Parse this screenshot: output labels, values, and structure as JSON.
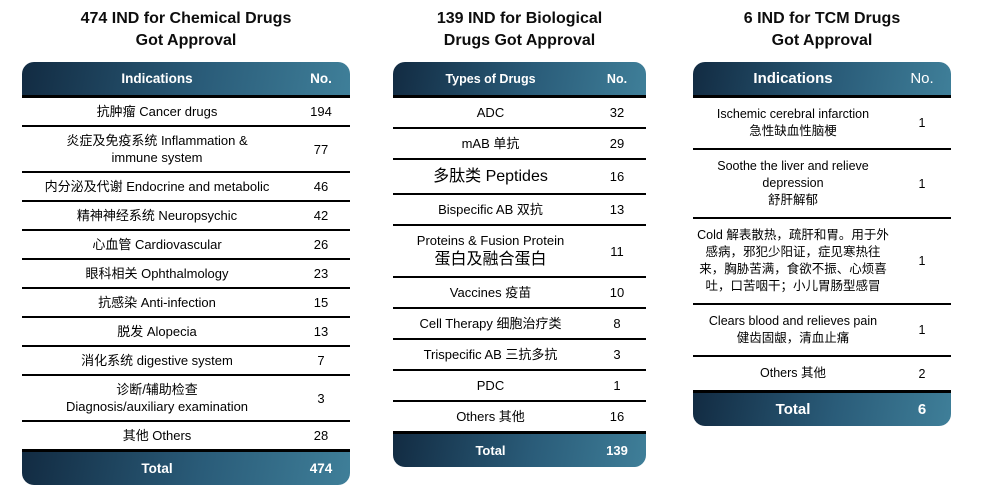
{
  "colors": {
    "header_gradient_start": "#122b42",
    "header_gradient_end": "#3f7f99",
    "header_text": "#ffffff",
    "row_separator": "#000000",
    "body_text": "#000000",
    "background": "#ffffff"
  },
  "chart_data": [
    {
      "type": "table",
      "title": "474 IND for Chemical Drugs\nGot Approval",
      "columns": [
        "Indications",
        "No."
      ],
      "rows": [
        {
          "lines": [
            "抗肿瘤 Cancer drugs"
          ],
          "value": 194
        },
        {
          "lines": [
            "炎症及免疫系统 Inflammation &",
            "immune system"
          ],
          "value": 77
        },
        {
          "lines": [
            "内分泌及代谢 Endocrine and metabolic"
          ],
          "value": 46
        },
        {
          "lines": [
            "精神神经系统 Neuropsychic"
          ],
          "value": 42
        },
        {
          "lines": [
            "心血管 Cardiovascular"
          ],
          "value": 26
        },
        {
          "lines": [
            "眼科相关 Ophthalmology"
          ],
          "value": 23
        },
        {
          "lines": [
            "抗感染 Anti-infection"
          ],
          "value": 15
        },
        {
          "lines": [
            "脱发 Alopecia"
          ],
          "value": 13
        },
        {
          "lines": [
            "消化系统 digestive system"
          ],
          "value": 7
        },
        {
          "lines": [
            "诊断/辅助检查",
            "Diagnosis/auxiliary examination"
          ],
          "value": 3
        },
        {
          "lines": [
            "其他 Others"
          ],
          "value": 28
        }
      ],
      "total": {
        "label": "Total",
        "value": 474
      }
    },
    {
      "type": "table",
      "title": "139 IND for Biological\nDrugs Got Approval",
      "columns": [
        "Types of Drugs",
        "No."
      ],
      "rows": [
        {
          "lines": [
            "ADC"
          ],
          "value": 32
        },
        {
          "lines": [
            "mAB 单抗"
          ],
          "value": 29
        },
        {
          "lines": [
            {
              "text": "多肽类 Peptides",
              "big": true
            }
          ],
          "value": 16
        },
        {
          "lines": [
            "Bispecific AB 双抗"
          ],
          "value": 13
        },
        {
          "lines": [
            "Proteins & Fusion Protein",
            {
              "text": "蛋白及融合蛋白",
              "big": true
            }
          ],
          "value": 11
        },
        {
          "lines": [
            "Vaccines 疫苗"
          ],
          "value": 10
        },
        {
          "lines": [
            "Cell Therapy 细胞治疗类"
          ],
          "value": 8
        },
        {
          "lines": [
            "Trispecific AB 三抗多抗"
          ],
          "value": 3
        },
        {
          "lines": [
            "PDC"
          ],
          "value": 1
        },
        {
          "lines": [
            "Others 其他"
          ],
          "value": 16
        }
      ],
      "total": {
        "label": "Total",
        "value": 139
      }
    },
    {
      "type": "table",
      "title": "6 IND for TCM Drugs\nGot Approval",
      "columns": [
        "Indications",
        "No."
      ],
      "rows": [
        {
          "lines": [
            "Ischemic cerebral infarction",
            "急性缺血性脑梗"
          ],
          "value": 1
        },
        {
          "lines": [
            "Soothe the liver and relieve depression",
            "舒肝解郁"
          ],
          "value": 1
        },
        {
          "lines": [
            "Cold 解表散热，疏肝和胃。用于外感病，邪犯少阳证，症见寒热往来，胸胁苦满，食欲不振、心烦喜吐，口苦咽干；小儿胃肠型感冒"
          ],
          "value": 1
        },
        {
          "lines": [
            "Clears blood and relieves pain",
            "健齿固龈，清血止痛"
          ],
          "value": 1
        },
        {
          "lines": [
            "Others 其他"
          ],
          "value": 2
        }
      ],
      "total": {
        "label": "Total",
        "value": 6
      }
    }
  ]
}
